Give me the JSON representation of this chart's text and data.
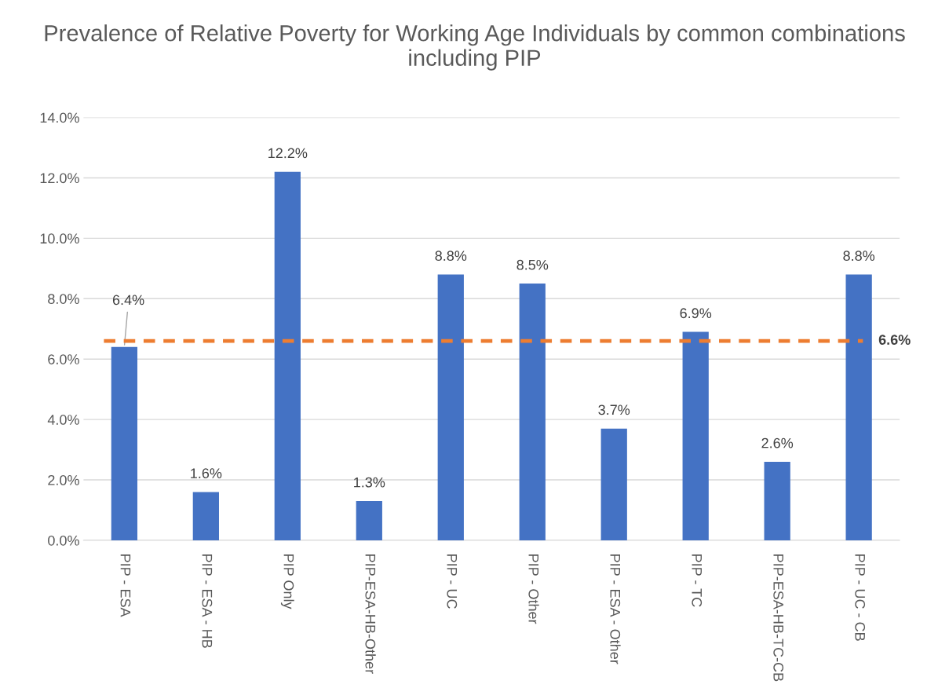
{
  "chart_data": {
    "type": "bar",
    "title": "Prevalence of Relative Poverty for Working Age Individuals by common combinations including PIP",
    "categories": [
      "PIP - ESA",
      "PIP - ESA - HB",
      "PIP Only",
      "PIP-ESA-HB-Other",
      "PIP - UC",
      "PIP - Other",
      "PIP - ESA - Other",
      "PIP - TC",
      "PIP-ESA-HB-TC-CB",
      "PIP - UC - CB"
    ],
    "series": [
      {
        "color": "#4472c4",
        "values": [
          6.4,
          1.6,
          12.2,
          1.3,
          8.8,
          8.5,
          3.7,
          6.9,
          2.6,
          8.8
        ],
        "value_labels": [
          "6.4%",
          "1.6%",
          "12.2%",
          "1.3%",
          "8.8%",
          "8.5%",
          "3.7%",
          "6.9%",
          "2.6%",
          "8.8%"
        ]
      }
    ],
    "ylim": [
      0,
      14
    ],
    "yticks": [
      {
        "value": 0,
        "label": "0.0%"
      },
      {
        "value": 2,
        "label": "2.0%"
      },
      {
        "value": 4,
        "label": "4.0%"
      },
      {
        "value": 6,
        "label": "6.0%"
      },
      {
        "value": 8,
        "label": "8.0%"
      },
      {
        "value": 10,
        "label": "10.0%"
      },
      {
        "value": 12,
        "label": "12.0%"
      },
      {
        "value": 14,
        "label": "14.0%"
      }
    ],
    "ref_lines": [
      {
        "axis": "y",
        "value": 6.6,
        "label": "6.6%",
        "color": "#ed7d31",
        "line_style": "dashed"
      }
    ],
    "grid": "y",
    "legend": false
  }
}
